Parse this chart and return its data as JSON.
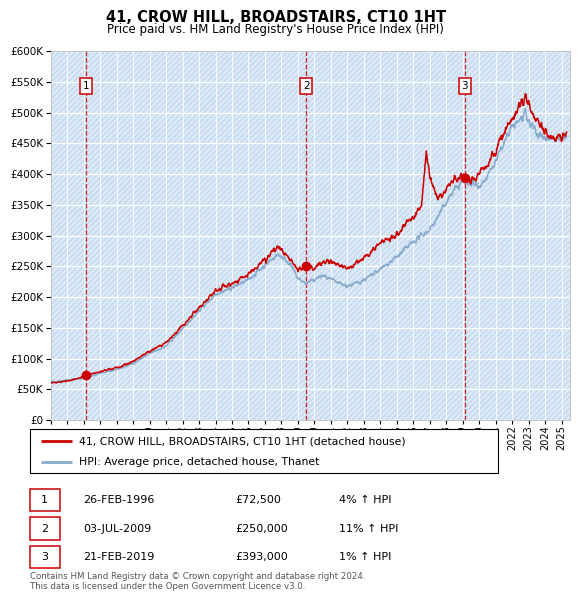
{
  "title": "41, CROW HILL, BROADSTAIRS, CT10 1HT",
  "subtitle": "Price paid vs. HM Land Registry's House Price Index (HPI)",
  "ylim": [
    0,
    600000
  ],
  "xlim_start": 1994.0,
  "xlim_end": 2025.5,
  "background_color": "#dce9f7",
  "hatch_color": "#c5d9ee",
  "grid_color": "#ffffff",
  "red_line_color": "#cc0000",
  "blue_line_color": "#88aacc",
  "dashed_line_color": "#cc0000",
  "sale_points": [
    {
      "year": 1996.15,
      "price": 72500,
      "label": "1"
    },
    {
      "year": 2009.5,
      "price": 250000,
      "label": "2"
    },
    {
      "year": 2019.13,
      "price": 393000,
      "label": "3"
    }
  ],
  "legend_entries": [
    {
      "label": "41, CROW HILL, BROADSTAIRS, CT10 1HT (detached house)",
      "color": "#cc0000"
    },
    {
      "label": "HPI: Average price, detached house, Thanet",
      "color": "#88aacc"
    }
  ],
  "table_rows": [
    {
      "num": "1",
      "date": "26-FEB-1996",
      "price": "£72,500",
      "hpi": "4% ↑ HPI"
    },
    {
      "num": "2",
      "date": "03-JUL-2009",
      "price": "£250,000",
      "hpi": "11% ↑ HPI"
    },
    {
      "num": "3",
      "date": "21-FEB-2019",
      "price": "£393,000",
      "hpi": "1% ↑ HPI"
    }
  ],
  "footer": "Contains HM Land Registry data © Crown copyright and database right 2024.\nThis data is licensed under the Open Government Licence v3.0."
}
